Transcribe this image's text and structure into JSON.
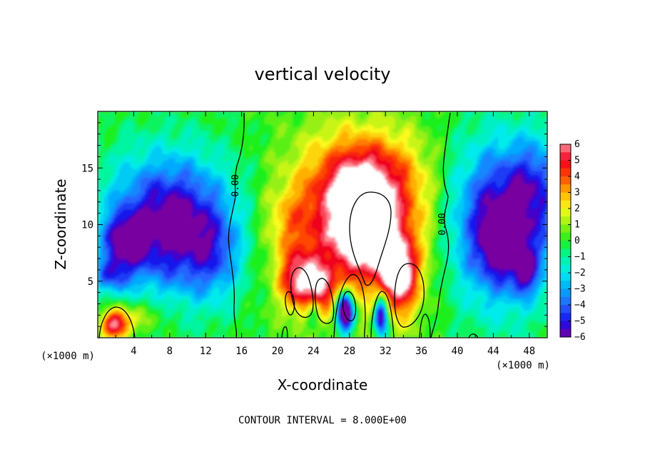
{
  "chart_data": {
    "type": "heatmap",
    "title": "vertical velocity",
    "xlabel": "X-coordinate",
    "ylabel": "Z-coordinate",
    "x_unit": "(×1000 m)",
    "x_unit_right": "(×1000 m)",
    "xlim": [
      0,
      50
    ],
    "ylim": [
      0,
      20
    ],
    "xticks": [
      "4",
      "8",
      "12",
      "16",
      "20",
      "24",
      "28",
      "32",
      "36",
      "40",
      "44",
      "48"
    ],
    "yticks": [
      "5",
      "10",
      "15"
    ],
    "colorbar": {
      "min": -6,
      "max": 6,
      "labels": [
        "6",
        "5",
        "4",
        "3",
        "2",
        "1",
        "0",
        "−1",
        "−2",
        "−3",
        "−4",
        "−5",
        "−6"
      ]
    },
    "contour_labels": [
      "0.00",
      "0.00"
    ],
    "footer": "CONTOUR INTERVAL = 8.000E+00"
  },
  "colors": {
    "background": "#ffffff",
    "axis": "#000000",
    "contour": "#000000",
    "saturated": "#ffffff"
  }
}
